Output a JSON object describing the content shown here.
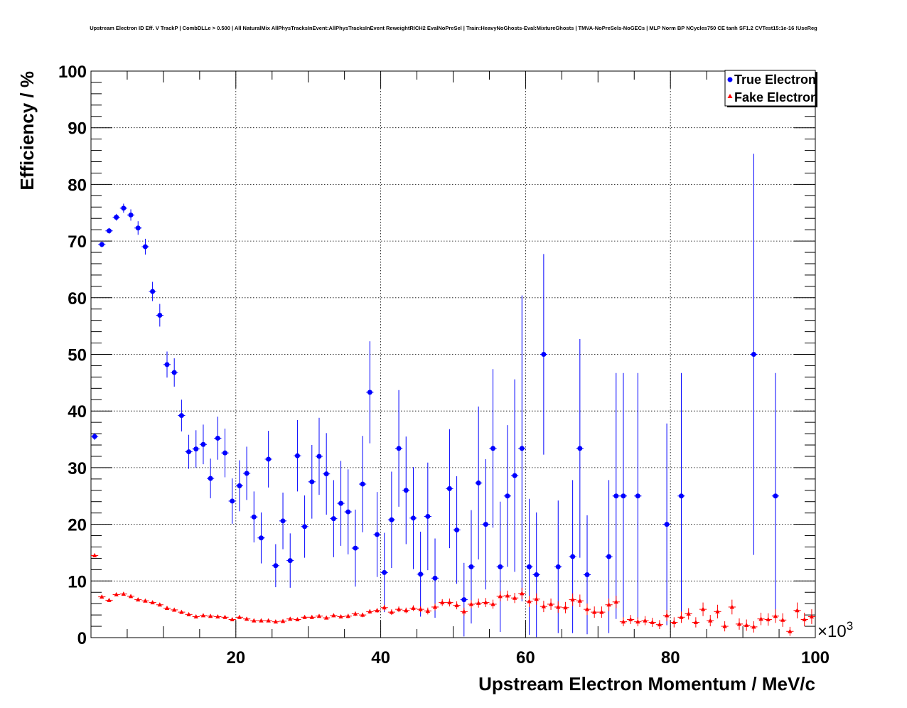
{
  "chart_data": {
    "type": "scatter",
    "title": "Upstream Electron ID Eff. V TrackP | CombDLLe > 0.500 | All NaturalMix AllPhysTracksInEvent:AllPhysTracksInEvent ReweightRICH2 EvalNoPreSel | Train:HeavyNoGhosts-Eval:MixtureGhosts | TMVA-NoPreSels-NoGECs | MLP Norm BP NCycles750 CE tanh SF1.2 CVTest15:1e-16 !UseReg",
    "xlabel": "Upstream Electron Momentum / MeV/c",
    "ylabel": "Efficiency / %",
    "x_multiplier": "×10",
    "x_multiplier_exp": "3",
    "xlim": [
      0,
      100
    ],
    "ylim": [
      0,
      100
    ],
    "x_ticks": [
      "20",
      "40",
      "60",
      "80",
      "100"
    ],
    "y_ticks": [
      "0",
      "10",
      "20",
      "30",
      "40",
      "50",
      "60",
      "70",
      "80",
      "90",
      "100"
    ],
    "grid": true,
    "legend": "top-right",
    "series": [
      {
        "name": "True Electron",
        "color": "#0000ff",
        "marker": "circle",
        "points": [
          [
            0.5,
            35.5,
            0.6
          ],
          [
            1.5,
            69.4,
            0.5
          ],
          [
            2.5,
            71.8,
            0.5
          ],
          [
            3.5,
            74.2,
            0.6
          ],
          [
            4.5,
            75.8,
            0.8
          ],
          [
            5.5,
            74.6,
            1.0
          ],
          [
            6.5,
            72.3,
            1.2
          ],
          [
            7.5,
            69.0,
            1.4
          ],
          [
            8.5,
            61.1,
            1.7
          ],
          [
            9.5,
            56.9,
            2.0
          ],
          [
            10.5,
            48.2,
            2.3
          ],
          [
            11.5,
            46.8,
            2.5
          ],
          [
            12.5,
            39.2,
            2.8
          ],
          [
            13.5,
            32.8,
            3.0
          ],
          [
            14.5,
            33.3,
            3.3
          ],
          [
            15.5,
            34.1,
            3.5
          ],
          [
            16.5,
            28.1,
            3.5
          ],
          [
            17.5,
            35.2,
            3.8
          ],
          [
            18.5,
            32.6,
            4.3
          ],
          [
            19.5,
            24.1,
            4.0
          ],
          [
            20.5,
            26.8,
            4.5
          ],
          [
            21.5,
            29.0,
            4.7
          ],
          [
            22.5,
            21.3,
            4.5
          ],
          [
            23.5,
            17.6,
            4.5
          ],
          [
            24.5,
            31.5,
            5.0
          ],
          [
            25.5,
            12.7,
            3.8
          ],
          [
            26.5,
            20.6,
            5.0
          ],
          [
            27.5,
            13.6,
            4.8
          ],
          [
            28.5,
            32.1,
            6.3
          ],
          [
            29.5,
            19.6,
            5.5
          ],
          [
            30.5,
            27.5,
            6.5
          ],
          [
            31.5,
            32.0,
            6.8
          ],
          [
            32.5,
            28.9,
            7.2
          ],
          [
            33.5,
            21.0,
            6.8
          ],
          [
            34.5,
            23.7,
            7.5
          ],
          [
            35.5,
            22.2,
            7.5
          ],
          [
            36.5,
            15.8,
            6.8
          ],
          [
            37.5,
            27.1,
            8.5
          ],
          [
            38.5,
            43.3,
            9.0
          ],
          [
            39.5,
            18.2,
            7.5
          ],
          [
            40.5,
            11.5,
            7.0
          ],
          [
            41.5,
            20.8,
            8.5
          ],
          [
            42.5,
            33.4,
            10.3
          ],
          [
            43.5,
            26.0,
            9.5
          ],
          [
            44.5,
            21.1,
            9.0
          ],
          [
            45.5,
            11.2,
            7.5
          ],
          [
            46.5,
            21.4,
            9.5
          ],
          [
            47.5,
            10.5,
            7.0
          ],
          [
            49.5,
            26.3,
            10.5
          ],
          [
            50.5,
            19.0,
            9.5
          ],
          [
            51.5,
            6.7,
            6.5
          ],
          [
            52.5,
            12.5,
            10.0
          ],
          [
            53.5,
            27.3,
            13.5
          ],
          [
            54.5,
            20.0,
            11.5
          ],
          [
            55.5,
            33.4,
            14.0
          ],
          [
            56.5,
            12.5,
            11.5
          ],
          [
            57.5,
            25.0,
            12.5
          ],
          [
            58.5,
            28.6,
            17.0
          ],
          [
            59.5,
            33.4,
            27.0
          ],
          [
            60.5,
            12.5,
            12.0
          ],
          [
            61.5,
            11.1,
            11.0
          ],
          [
            62.5,
            50.0,
            17.7
          ],
          [
            64.5,
            12.5,
            11.7
          ],
          [
            66.5,
            14.3,
            13.5
          ],
          [
            67.5,
            33.4,
            19.3
          ],
          [
            68.5,
            11.1,
            10.5
          ],
          [
            71.5,
            14.3,
            13.5
          ],
          [
            72.5,
            25.0,
            21.7
          ],
          [
            73.5,
            25.0,
            21.7
          ],
          [
            75.5,
            25.0,
            21.7
          ],
          [
            79.5,
            20.0,
            17.8
          ],
          [
            81.5,
            25.0,
            21.7
          ],
          [
            91.5,
            50.0,
            35.4
          ],
          [
            94.5,
            25.0,
            21.7
          ]
        ]
      },
      {
        "name": "Fake Electron",
        "color": "#ff0000",
        "marker": "triangle",
        "points": [
          [
            0.5,
            14.5,
            0.3
          ],
          [
            1.5,
            7.2,
            0.2
          ],
          [
            2.5,
            6.6,
            0.2
          ],
          [
            3.5,
            7.6,
            0.2
          ],
          [
            4.5,
            7.7,
            0.2
          ],
          [
            5.5,
            7.3,
            0.2
          ],
          [
            6.5,
            6.7,
            0.2
          ],
          [
            7.5,
            6.5,
            0.2
          ],
          [
            8.5,
            6.2,
            0.2
          ],
          [
            9.5,
            5.8,
            0.2
          ],
          [
            10.5,
            5.2,
            0.2
          ],
          [
            11.5,
            4.9,
            0.2
          ],
          [
            12.5,
            4.5,
            0.2
          ],
          [
            13.5,
            4.1,
            0.2
          ],
          [
            14.5,
            3.7,
            0.2
          ],
          [
            15.5,
            3.9,
            0.2
          ],
          [
            16.5,
            3.8,
            0.2
          ],
          [
            17.5,
            3.7,
            0.2
          ],
          [
            18.5,
            3.6,
            0.2
          ],
          [
            19.5,
            3.2,
            0.2
          ],
          [
            20.5,
            3.6,
            0.3
          ],
          [
            21.5,
            3.3,
            0.3
          ],
          [
            22.5,
            3.0,
            0.3
          ],
          [
            23.5,
            3.0,
            0.3
          ],
          [
            24.5,
            3.0,
            0.3
          ],
          [
            25.5,
            2.8,
            0.3
          ],
          [
            26.5,
            2.9,
            0.3
          ],
          [
            27.5,
            3.3,
            0.3
          ],
          [
            28.5,
            3.2,
            0.3
          ],
          [
            29.5,
            3.6,
            0.3
          ],
          [
            30.5,
            3.6,
            0.3
          ],
          [
            31.5,
            3.8,
            0.3
          ],
          [
            32.5,
            3.5,
            0.3
          ],
          [
            33.5,
            3.9,
            0.3
          ],
          [
            34.5,
            3.7,
            0.3
          ],
          [
            35.5,
            3.8,
            0.4
          ],
          [
            36.5,
            4.2,
            0.4
          ],
          [
            37.5,
            4.0,
            0.4
          ],
          [
            38.5,
            4.6,
            0.4
          ],
          [
            39.5,
            4.8,
            0.4
          ],
          [
            40.5,
            5.3,
            0.5
          ],
          [
            41.5,
            4.5,
            0.5
          ],
          [
            42.5,
            5.0,
            0.5
          ],
          [
            43.5,
            4.8,
            0.5
          ],
          [
            44.5,
            5.2,
            0.5
          ],
          [
            45.5,
            5.0,
            0.5
          ],
          [
            46.5,
            4.7,
            0.6
          ],
          [
            47.5,
            5.4,
            0.6
          ],
          [
            48.5,
            6.2,
            0.6
          ],
          [
            49.5,
            6.2,
            0.7
          ],
          [
            50.5,
            5.7,
            0.7
          ],
          [
            51.5,
            4.6,
            0.7
          ],
          [
            52.5,
            5.9,
            0.7
          ],
          [
            53.5,
            6.1,
            0.8
          ],
          [
            54.5,
            6.2,
            0.8
          ],
          [
            55.5,
            5.9,
            0.8
          ],
          [
            56.5,
            7.3,
            0.9
          ],
          [
            57.5,
            7.4,
            0.9
          ],
          [
            58.5,
            7.0,
            0.9
          ],
          [
            59.5,
            7.8,
            1.0
          ],
          [
            60.5,
            6.4,
            1.0
          ],
          [
            61.5,
            6.8,
            1.0
          ],
          [
            62.5,
            5.5,
            1.0
          ],
          [
            63.5,
            5.9,
            1.0
          ],
          [
            64.5,
            5.4,
            1.0
          ],
          [
            65.5,
            5.3,
            1.0
          ],
          [
            66.5,
            6.7,
            1.1
          ],
          [
            67.5,
            6.5,
            1.1
          ],
          [
            68.5,
            5.0,
            1.0
          ],
          [
            69.5,
            4.5,
            1.0
          ],
          [
            70.5,
            4.5,
            1.0
          ],
          [
            71.5,
            5.8,
            1.1
          ],
          [
            72.5,
            6.3,
            1.1
          ],
          [
            73.5,
            2.8,
            0.8
          ],
          [
            74.5,
            3.2,
            0.8
          ],
          [
            75.5,
            2.8,
            0.8
          ],
          [
            76.5,
            3.0,
            0.8
          ],
          [
            77.5,
            2.7,
            0.8
          ],
          [
            78.5,
            2.3,
            0.8
          ],
          [
            79.5,
            3.9,
            1.0
          ],
          [
            80.5,
            2.7,
            0.9
          ],
          [
            81.5,
            3.6,
            1.0
          ],
          [
            82.5,
            4.2,
            1.0
          ],
          [
            83.5,
            2.7,
            0.9
          ],
          [
            84.5,
            5.0,
            1.2
          ],
          [
            85.5,
            3.0,
            1.0
          ],
          [
            86.5,
            4.6,
            1.2
          ],
          [
            87.5,
            2.0,
            0.9
          ],
          [
            88.5,
            5.4,
            1.3
          ],
          [
            89.5,
            2.4,
            1.0
          ],
          [
            90.5,
            2.2,
            1.0
          ],
          [
            91.5,
            1.9,
            1.0
          ],
          [
            92.5,
            3.3,
            1.1
          ],
          [
            93.5,
            3.2,
            1.1
          ],
          [
            94.5,
            3.8,
            1.2
          ],
          [
            95.5,
            3.1,
            1.2
          ],
          [
            96.5,
            1.1,
            0.8
          ],
          [
            97.5,
            4.8,
            1.4
          ],
          [
            98.5,
            3.2,
            1.2
          ],
          [
            99.5,
            3.7,
            1.3
          ]
        ]
      }
    ]
  }
}
